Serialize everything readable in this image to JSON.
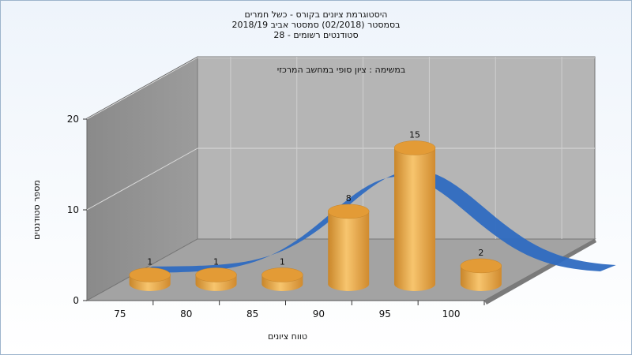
{
  "title_lines": [
    "היסטוגרמת ציונים בקורס - כשל חמרים",
    "בסמסטר (02/2018) סמסטר אביב 2018/19",
    "סטודנטים רשומים - 28"
  ],
  "chart_data": {
    "type": "bar",
    "subtitle": "במשימה : ציון סופי במחשב המרכזי",
    "xlabel": "טווח ציונים",
    "ylabel": "מספר סטודנטים",
    "x_ticks": [
      "75",
      "80",
      "85",
      "90",
      "95",
      "100"
    ],
    "y_ticks": [
      "0",
      "10",
      "20"
    ],
    "ylim": [
      0,
      20
    ],
    "bars": [
      {
        "x_center": 75,
        "value": 1,
        "label": "1"
      },
      {
        "x_center": 80,
        "value": 1,
        "label": "1"
      },
      {
        "x_center": 85,
        "value": 1,
        "label": "1"
      },
      {
        "x_center": 90,
        "value": 8,
        "label": "8"
      },
      {
        "x_center": 95,
        "value": 15,
        "label": "15"
      },
      {
        "x_center": 100,
        "value": 2,
        "label": "2"
      }
    ],
    "curve": {
      "type": "normal-distribution",
      "color": "#2f6cc1"
    },
    "colors": {
      "bar": "#e8a640",
      "curve": "#2f6cc1",
      "back_wall": "#b5b5b5",
      "left_wall": "#8c8c8c",
      "floor": "#a3a3a3"
    },
    "grid": true
  }
}
